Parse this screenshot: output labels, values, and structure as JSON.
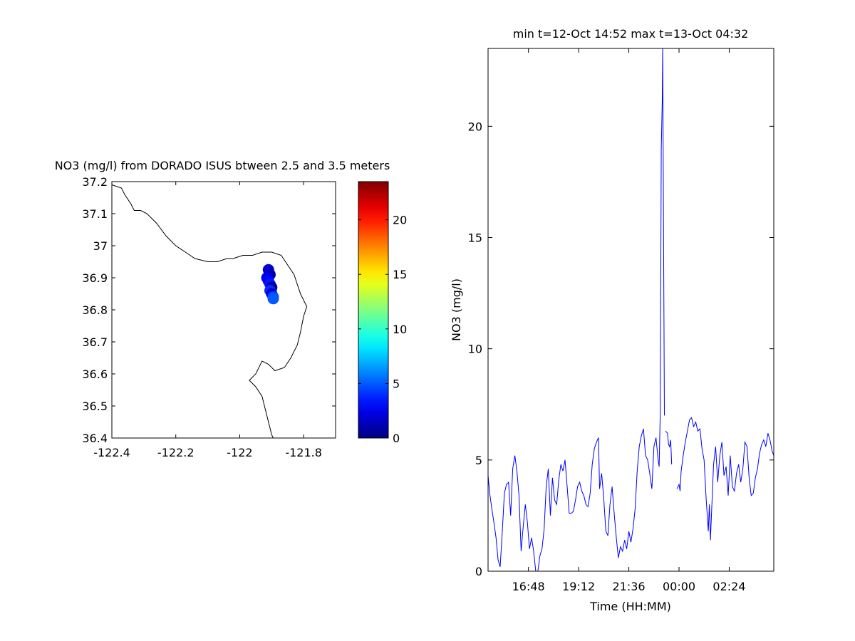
{
  "chart_data": [
    {
      "type": "scatter",
      "title": "NO3 (mg/l) from DORADO ISUS btween 2.5 and 3.5 meters",
      "xlabel": "",
      "ylabel": "",
      "xlim": [
        -122.4,
        -121.7
      ],
      "ylim": [
        36.4,
        37.2
      ],
      "xticks": [
        -122.4,
        -122.2,
        -122,
        -121.8
      ],
      "yticks": [
        36.4,
        36.5,
        36.6,
        36.7,
        36.8,
        36.9,
        37,
        37.1,
        37.2
      ],
      "xtick_labels": [
        "-122.4",
        "-122.2",
        "-122",
        "-121.8"
      ],
      "ytick_labels": [
        "36.4",
        "36.5",
        "36.6",
        "36.7",
        "36.8",
        "36.9",
        "37",
        "37.1",
        "37.2"
      ],
      "coastline": [
        [
          -122.4,
          37.19
        ],
        [
          -122.37,
          37.18
        ],
        [
          -122.36,
          37.16
        ],
        [
          -122.34,
          37.13
        ],
        [
          -122.33,
          37.11
        ],
        [
          -122.31,
          37.11
        ],
        [
          -122.29,
          37.1
        ],
        [
          -122.26,
          37.07
        ],
        [
          -122.23,
          37.03
        ],
        [
          -122.2,
          37.0
        ],
        [
          -122.17,
          36.98
        ],
        [
          -122.14,
          36.96
        ],
        [
          -122.1,
          36.95
        ],
        [
          -122.07,
          36.95
        ],
        [
          -122.04,
          36.96
        ],
        [
          -122.02,
          36.96
        ],
        [
          -121.99,
          36.97
        ],
        [
          -121.96,
          36.97
        ],
        [
          -121.93,
          36.98
        ],
        [
          -121.9,
          36.98
        ],
        [
          -121.87,
          36.97
        ],
        [
          -121.85,
          36.94
        ],
        [
          -121.83,
          36.91
        ],
        [
          -121.82,
          36.88
        ],
        [
          -121.81,
          36.85
        ],
        [
          -121.79,
          36.81
        ],
        [
          -121.8,
          36.78
        ],
        [
          -121.81,
          36.73
        ],
        [
          -121.82,
          36.69
        ],
        [
          -121.84,
          36.65
        ],
        [
          -121.86,
          36.62
        ],
        [
          -121.89,
          36.61
        ],
        [
          -121.91,
          36.63
        ],
        [
          -121.93,
          36.64
        ],
        [
          -121.95,
          36.6
        ],
        [
          -121.97,
          36.58
        ],
        [
          -121.95,
          36.56
        ],
        [
          -121.93,
          36.53
        ],
        [
          -121.92,
          36.49
        ],
        [
          -121.91,
          36.45
        ],
        [
          -121.9,
          36.41
        ],
        [
          -121.895,
          36.4
        ]
      ],
      "points": [
        {
          "lon": -121.91,
          "lat": 36.925,
          "value": 2.0
        },
        {
          "lon": -121.905,
          "lat": 36.91,
          "value": 1.0
        },
        {
          "lon": -121.915,
          "lat": 36.9,
          "value": 2.5
        },
        {
          "lon": -121.91,
          "lat": 36.89,
          "value": 3.0
        },
        {
          "lon": -121.905,
          "lat": 36.88,
          "value": 3.5
        },
        {
          "lon": -121.9,
          "lat": 36.87,
          "value": 0.5
        },
        {
          "lon": -121.905,
          "lat": 36.86,
          "value": 4.0
        },
        {
          "lon": -121.9,
          "lat": 36.85,
          "value": 2.0
        },
        {
          "lon": -121.895,
          "lat": 36.84,
          "value": 4.5
        },
        {
          "lon": -121.895,
          "lat": 36.835,
          "value": 5.0
        }
      ],
      "colorbar": {
        "min": 0,
        "max": 23.5,
        "ticks": [
          0,
          5,
          10,
          15,
          20
        ],
        "tick_labels": [
          "0",
          "5",
          "10",
          "15",
          "20"
        ],
        "colormap": "jet"
      }
    },
    {
      "type": "line",
      "title": "min t=12-Oct 14:52 max t=13-Oct 04:32",
      "xlabel": "Time (HH:MM)",
      "ylabel": "NO3 (mg/l)",
      "xlim_hours": [
        14.87,
        28.53
      ],
      "ylim": [
        0,
        23.5
      ],
      "xticks_hours": [
        16.8,
        19.2,
        21.6,
        24.0,
        26.4
      ],
      "xtick_labels": [
        "16:48",
        "19:12",
        "21:36",
        "00:00",
        "02:24"
      ],
      "yticks": [
        0,
        5,
        10,
        15,
        20
      ],
      "ytick_labels": [
        "0",
        "5",
        "10",
        "15",
        "20"
      ],
      "series": [
        {
          "color": "#0000ff",
          "segments": [
            [
              [
                14.87,
                4.3
              ],
              [
                14.95,
                3.5
              ],
              [
                15.05,
                2.8
              ],
              [
                15.15,
                2.2
              ],
              [
                15.25,
                1.5
              ],
              [
                15.35,
                0.5
              ],
              [
                15.45,
                0.2
              ],
              [
                15.55,
                1.8
              ],
              [
                15.65,
                3.5
              ],
              [
                15.75,
                3.9
              ],
              [
                15.85,
                4.0
              ],
              [
                15.95,
                2.5
              ],
              [
                16.05,
                4.6
              ],
              [
                16.15,
                5.2
              ],
              [
                16.25,
                4.5
              ],
              [
                16.35,
                3.4
              ],
              [
                16.45,
                0.9
              ],
              [
                16.55,
                2.0
              ],
              [
                16.65,
                3.0
              ],
              [
                16.75,
                2.2
              ],
              [
                16.85,
                1.0
              ],
              [
                16.95,
                1.5
              ],
              [
                17.05,
                0.9
              ],
              [
                17.15,
                0.0
              ],
              [
                17.25,
                0.0
              ],
              [
                17.35,
                0.7
              ],
              [
                17.45,
                1.0
              ],
              [
                17.55,
                1.9
              ],
              [
                17.65,
                3.8
              ],
              [
                17.75,
                4.6
              ],
              [
                17.85,
                2.5
              ],
              [
                17.95,
                4.2
              ],
              [
                18.05,
                3.2
              ],
              [
                18.15,
                3.0
              ],
              [
                18.25,
                4.1
              ],
              [
                18.35,
                4.8
              ],
              [
                18.45,
                4.5
              ],
              [
                18.55,
                5.0
              ],
              [
                18.65,
                3.8
              ],
              [
                18.75,
                2.6
              ],
              [
                18.85,
                2.6
              ],
              [
                18.95,
                2.7
              ],
              [
                19.05,
                3.2
              ],
              [
                19.15,
                3.8
              ],
              [
                19.25,
                4.0
              ],
              [
                19.35,
                3.6
              ],
              [
                19.45,
                3.4
              ],
              [
                19.55,
                3.0
              ],
              [
                19.65,
                2.9
              ],
              [
                19.75,
                3.5
              ],
              [
                19.85,
                4.8
              ],
              [
                19.95,
                5.5
              ],
              [
                20.05,
                5.8
              ],
              [
                20.15,
                6.0
              ],
              [
                20.2,
                3.7
              ],
              [
                20.3,
                4.4
              ],
              [
                20.4,
                3.3
              ],
              [
                20.5,
                1.8
              ],
              [
                20.6,
                1.6
              ],
              [
                20.7,
                3.0
              ],
              [
                20.8,
                3.8
              ],
              [
                20.9,
                2.6
              ],
              [
                21.0,
                1.5
              ],
              [
                21.1,
                0.6
              ],
              [
                21.2,
                1.1
              ],
              [
                21.3,
                0.9
              ],
              [
                21.4,
                1.4
              ],
              [
                21.5,
                1.0
              ],
              [
                21.6,
                1.8
              ],
              [
                21.7,
                1.3
              ],
              [
                21.8,
                1.9
              ],
              [
                21.9,
                2.8
              ],
              [
                22.0,
                4.5
              ],
              [
                22.1,
                5.6
              ],
              [
                22.2,
                6.1
              ],
              [
                22.3,
                6.4
              ],
              [
                22.4,
                5.2
              ],
              [
                22.5,
                5.0
              ],
              [
                22.6,
                4.4
              ],
              [
                22.7,
                3.7
              ],
              [
                22.8,
                5.6
              ],
              [
                22.9,
                6.0
              ],
              [
                23.0,
                5.0
              ],
              [
                23.05,
                4.7
              ],
              [
                23.1,
                7.0
              ],
              [
                23.15,
                19.0
              ],
              [
                23.2,
                21.2
              ],
              [
                23.22,
                23.5
              ],
              [
                23.3,
                7.0
              ]
            ],
            [
              [
                23.35,
                6.3
              ],
              [
                23.45,
                6.2
              ],
              [
                23.5,
                5.7
              ],
              [
                23.55,
                5.6
              ],
              [
                23.6,
                5.9
              ],
              [
                23.65,
                4.8
              ]
            ],
            [
              [
                23.9,
                3.7
              ],
              [
                24.0,
                3.9
              ],
              [
                24.05,
                3.6
              ],
              [
                24.1,
                4.5
              ],
              [
                24.2,
                5.2
              ],
              [
                24.3,
                5.8
              ],
              [
                24.4,
                6.3
              ],
              [
                24.5,
                6.8
              ],
              [
                24.6,
                6.9
              ],
              [
                24.7,
                6.5
              ],
              [
                24.8,
                6.7
              ],
              [
                24.9,
                6.3
              ],
              [
                25.0,
                6.4
              ],
              [
                25.1,
                5.5
              ],
              [
                25.2,
                5.0
              ],
              [
                25.3,
                3.2
              ],
              [
                25.4,
                1.8
              ],
              [
                25.45,
                3.0
              ],
              [
                25.5,
                1.4
              ],
              [
                25.55,
                2.5
              ],
              [
                25.65,
                4.8
              ],
              [
                25.75,
                5.6
              ],
              [
                25.85,
                4.0
              ],
              [
                25.95,
                5.2
              ],
              [
                26.05,
                5.8
              ],
              [
                26.15,
                4.3
              ],
              [
                26.25,
                4.7
              ],
              [
                26.35,
                3.4
              ],
              [
                26.45,
                5.2
              ],
              [
                26.55,
                3.8
              ],
              [
                26.65,
                3.6
              ],
              [
                26.75,
                4.4
              ],
              [
                26.85,
                4.8
              ],
              [
                26.95,
                4.0
              ],
              [
                27.05,
                4.6
              ],
              [
                27.15,
                5.8
              ],
              [
                27.25,
                5.6
              ],
              [
                27.35,
                4.2
              ],
              [
                27.45,
                3.4
              ],
              [
                27.55,
                3.5
              ],
              [
                27.65,
                4.2
              ],
              [
                27.75,
                4.6
              ],
              [
                27.85,
                5.3
              ],
              [
                27.95,
                5.7
              ],
              [
                28.05,
                5.9
              ],
              [
                28.15,
                5.6
              ],
              [
                28.25,
                6.2
              ],
              [
                28.35,
                5.9
              ],
              [
                28.45,
                5.4
              ],
              [
                28.53,
                5.2
              ]
            ]
          ]
        }
      ]
    }
  ]
}
